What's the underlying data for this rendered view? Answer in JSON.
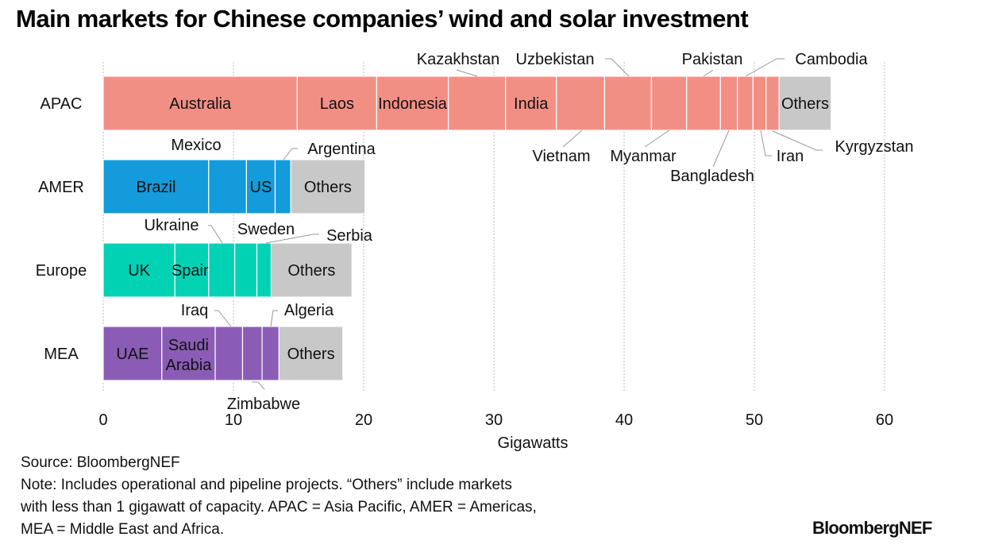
{
  "chart_data": {
    "type": "bar",
    "orientation": "horizontal",
    "stacked": true,
    "title": "Main markets for Chinese companies’ wind and solar investment",
    "xlabel": "Gigawatts",
    "xlim": [
      0,
      60
    ],
    "xticks": [
      "0",
      "10",
      "20",
      "30",
      "40",
      "50",
      "60"
    ],
    "grid": true,
    "categories": [
      "APAC",
      "AMER",
      "Europe",
      "MEA"
    ],
    "colors": {
      "APAC": "#f28f85",
      "AMER": "#139bdb",
      "Europe": "#00d2b4",
      "MEA": "#8b5cb5",
      "Others": "#c8c8c8"
    },
    "bars": [
      {
        "category": "APAC",
        "segments": [
          {
            "name": "Australia",
            "value": 14.9
          },
          {
            "name": "Laos",
            "value": 6.1
          },
          {
            "name": "Indonesia",
            "value": 5.5
          },
          {
            "name": "Kazakhstan",
            "value": 4.4
          },
          {
            "name": "India",
            "value": 3.9
          },
          {
            "name": "Vietnam",
            "value": 3.7
          },
          {
            "name": "Uzbekistan",
            "value": 3.6
          },
          {
            "name": "Myanmar",
            "value": 2.7
          },
          {
            "name": "Pakistan",
            "value": 2.6
          },
          {
            "name": "Bangladesh",
            "value": 1.3
          },
          {
            "name": "Cambodia",
            "value": 1.2
          },
          {
            "name": "Iran",
            "value": 1.0
          },
          {
            "name": "Kyrgyzstan",
            "value": 1.0
          },
          {
            "name": "Others",
            "value": 4.0
          }
        ]
      },
      {
        "category": "AMER",
        "segments": [
          {
            "name": "Brazil",
            "value": 8.1
          },
          {
            "name": "Mexico",
            "value": 2.9
          },
          {
            "name": "US",
            "value": 2.2
          },
          {
            "name": "Argentina",
            "value": 1.2
          },
          {
            "name": "Others",
            "value": 5.7
          }
        ]
      },
      {
        "category": "Europe",
        "segments": [
          {
            "name": "UK",
            "value": 5.5
          },
          {
            "name": "Spain",
            "value": 2.6
          },
          {
            "name": "Ukraine",
            "value": 2.0
          },
          {
            "name": "Sweden",
            "value": 1.7
          },
          {
            "name": "Serbia",
            "value": 1.1
          },
          {
            "name": "Others",
            "value": 6.2
          }
        ]
      },
      {
        "category": "MEA",
        "segments": [
          {
            "name": "UAE",
            "value": 4.5
          },
          {
            "name": "Saudi Arabia",
            "value": 4.1
          },
          {
            "name": "Iraq",
            "value": 2.1
          },
          {
            "name": "Zimbabwe",
            "value": 1.5
          },
          {
            "name": "Algeria",
            "value": 1.3
          },
          {
            "name": "Others",
            "value": 4.9
          }
        ]
      }
    ]
  },
  "footer": {
    "source": "Source: BloombergNEF",
    "note_lines": [
      "Note: Includes operational and pipeline projects. “Others” include markets",
      "with less than 1 gigawatt of capacity. APAC = Asia Pacific, AMER = Americas,",
      "MEA = Middle East and Africa."
    ],
    "logo": "BloombergNEF"
  }
}
